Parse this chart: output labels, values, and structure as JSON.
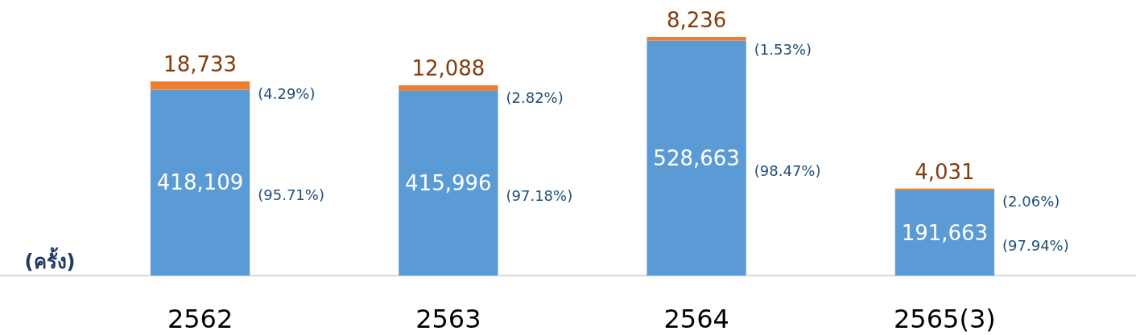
{
  "chart_data": {
    "type": "bar",
    "stacked": true,
    "ylabel": "(ครั้ง)",
    "categories": [
      "2562",
      "2563",
      "2564",
      "2565(3)"
    ],
    "series": [
      {
        "color": "#5b9bd5",
        "values": [
          418109,
          415996,
          528663,
          191663
        ],
        "value_labels": [
          "418,109",
          "415,996",
          "528,663",
          "191,663"
        ]
      },
      {
        "color": "#ed7d31",
        "values": [
          18733,
          12088,
          8236,
          4031
        ],
        "value_labels": [
          "18,733",
          "12,088",
          "8,236",
          "4,031"
        ]
      }
    ],
    "annotations": [
      "(95.71%)",
      "(4.29%)",
      "(97.18%)",
      "(2.82%)",
      "(98.47%)",
      "(1.53%)",
      "(97.94%)",
      "(2.06%)"
    ]
  }
}
